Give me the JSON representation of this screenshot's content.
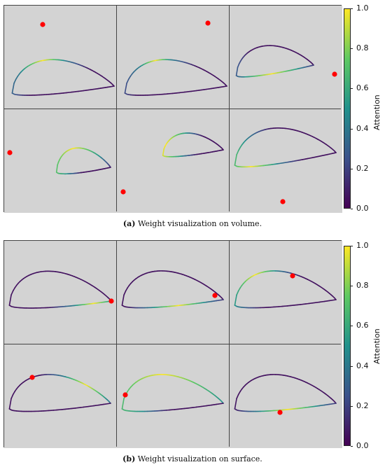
{
  "chart_data": [
    {
      "type": "scatter",
      "title": "",
      "caption_label": "(a)",
      "caption_text": "Weight visualization on volume.",
      "colorbar": {
        "label": "Attention",
        "colormap": "viridis",
        "range": [
          0.0,
          1.0
        ],
        "ticks": [
          "0.0",
          "0.2",
          "0.4",
          "0.6",
          "0.8",
          "1.0"
        ]
      },
      "grid": {
        "rows": 2,
        "cols": 3
      },
      "panels": [
        {
          "point": [
            55,
            27
          ],
          "airfoil": {
            "x0": 12,
            "y0": 125,
            "x1": 157,
            "y1": 115,
            "peak": 0.38
          },
          "highlight": [
            0.25,
            0.45
          ]
        },
        {
          "point": [
            130,
            25
          ],
          "airfoil": {
            "x0": 12,
            "y0": 125,
            "x1": 157,
            "y1": 115,
            "peak": 0.38
          },
          "highlight": [
            0.28,
            0.42
          ]
        },
        {
          "point": [
            150,
            98
          ],
          "airfoil": {
            "x0": 10,
            "y0": 100,
            "x1": 120,
            "y1": 85,
            "peak": 0.42
          },
          "highlight": [
            0.55,
            0.9
          ]
        },
        {
          "point": [
            8,
            62
          ],
          "airfoil": {
            "x0": 75,
            "y0": 90,
            "x1": 152,
            "y1": 83,
            "peak": 0.52
          },
          "highlight": [
            0.1,
            0.6
          ]
        },
        {
          "point": [
            9,
            118
          ],
          "airfoil": {
            "x0": 66,
            "y0": 66,
            "x1": 152,
            "y1": 58,
            "peak": 0.42
          },
          "highlight": [
            0.3,
            0.65
          ]
        },
        {
          "point": [
            76,
            132
          ],
          "airfoil": {
            "x0": 8,
            "y0": 80,
            "x1": 152,
            "y1": 62,
            "peak": 0.4
          },
          "highlight": [
            0.45,
            0.7
          ]
        }
      ]
    },
    {
      "type": "scatter",
      "title": "",
      "caption_label": "(b)",
      "caption_text": "Weight visualization on surface.",
      "colorbar": {
        "label": "Attention",
        "colormap": "viridis",
        "range": [
          0.0,
          1.0
        ],
        "ticks": [
          "0.0",
          "0.2",
          "0.4",
          "0.6",
          "0.8",
          "1.0"
        ]
      },
      "grid": {
        "rows": 2,
        "cols": 3
      },
      "panels": [
        {
          "point": [
            153,
            86
          ],
          "airfoil": {
            "x0": 8,
            "y0": 92,
            "x1": 153,
            "y1": 86,
            "peak": 0.4
          },
          "highlight": [
            0.82,
            1.0
          ]
        },
        {
          "point": [
            140,
            78
          ],
          "airfoil": {
            "x0": 8,
            "y0": 92,
            "x1": 152,
            "y1": 84,
            "peak": 0.4
          },
          "highlight": [
            0.65,
            0.9
          ]
        },
        {
          "point": [
            90,
            50
          ],
          "airfoil": {
            "x0": 8,
            "y0": 92,
            "x1": 152,
            "y1": 84,
            "peak": 0.4
          },
          "highlight": [
            0.3,
            0.5
          ]
        },
        {
          "point": [
            40,
            47
          ],
          "airfoil": {
            "x0": 8,
            "y0": 92,
            "x1": 152,
            "y1": 84,
            "peak": 0.4
          },
          "highlight": [
            0.02,
            0.22
          ]
        },
        {
          "point": [
            12,
            72
          ],
          "airfoil": {
            "x0": 8,
            "y0": 92,
            "x1": 152,
            "y1": 84,
            "peak": 0.4
          },
          "highlight": [
            0.0,
            0.6
          ]
        },
        {
          "point": [
            72,
            97
          ],
          "airfoil": {
            "x0": 8,
            "y0": 92,
            "x1": 152,
            "y1": 84,
            "peak": 0.4
          },
          "highlight": [
            0.62,
            0.9
          ]
        }
      ]
    }
  ],
  "colors": {
    "background_panel": "#d3d3d3",
    "point": "#ff0000",
    "viridis": [
      "#440154",
      "#3b528b",
      "#21918c",
      "#5ec962",
      "#fde725"
    ]
  }
}
